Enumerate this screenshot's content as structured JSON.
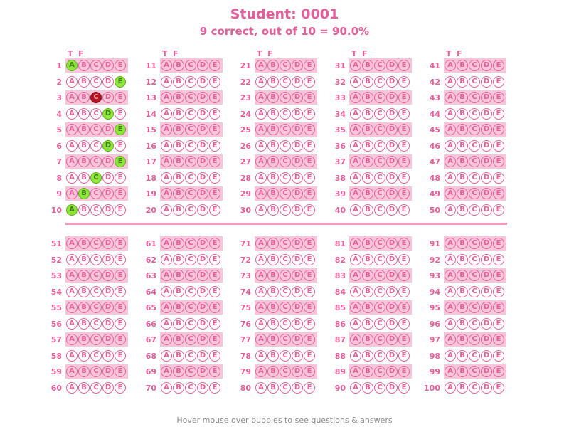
{
  "header": {
    "title": "Student: 0001",
    "score_line": "9 correct, out of 10 = 90.0%"
  },
  "column_header": "T  F",
  "choices": [
    "A",
    "B",
    "C",
    "D",
    "E"
  ],
  "questions": [
    {
      "number": "1",
      "marked": "A",
      "result": "correct"
    },
    {
      "number": "2",
      "marked": "E",
      "result": "correct"
    },
    {
      "number": "3",
      "marked": "C",
      "result": "wrong"
    },
    {
      "number": "4",
      "marked": "D",
      "result": "correct"
    },
    {
      "number": "5",
      "marked": "E",
      "result": "correct"
    },
    {
      "number": "6",
      "marked": "D",
      "result": "correct"
    },
    {
      "number": "7",
      "marked": "E",
      "result": "correct"
    },
    {
      "number": "8",
      "marked": "C",
      "result": "correct"
    },
    {
      "number": "9",
      "marked": "B",
      "result": "correct"
    },
    {
      "number": "10",
      "marked": "A",
      "result": "correct"
    },
    {
      "number": "11"
    },
    {
      "number": "12"
    },
    {
      "number": "13"
    },
    {
      "number": "14"
    },
    {
      "number": "15"
    },
    {
      "number": "16"
    },
    {
      "number": "17"
    },
    {
      "number": "18"
    },
    {
      "number": "19"
    },
    {
      "number": "20"
    },
    {
      "number": "21"
    },
    {
      "number": "22"
    },
    {
      "number": "23"
    },
    {
      "number": "24"
    },
    {
      "number": "25"
    },
    {
      "number": "26"
    },
    {
      "number": "27"
    },
    {
      "number": "28"
    },
    {
      "number": "29"
    },
    {
      "number": "30"
    },
    {
      "number": "31"
    },
    {
      "number": "32"
    },
    {
      "number": "33"
    },
    {
      "number": "34"
    },
    {
      "number": "35"
    },
    {
      "number": "36"
    },
    {
      "number": "37"
    },
    {
      "number": "38"
    },
    {
      "number": "39"
    },
    {
      "number": "40"
    },
    {
      "number": "41"
    },
    {
      "number": "42"
    },
    {
      "number": "43"
    },
    {
      "number": "44"
    },
    {
      "number": "45"
    },
    {
      "number": "46"
    },
    {
      "number": "47"
    },
    {
      "number": "48"
    },
    {
      "number": "49"
    },
    {
      "number": "50"
    },
    {
      "number": "51"
    },
    {
      "number": "52"
    },
    {
      "number": "53"
    },
    {
      "number": "54"
    },
    {
      "number": "55"
    },
    {
      "number": "56"
    },
    {
      "number": "57"
    },
    {
      "number": "58"
    },
    {
      "number": "59"
    },
    {
      "number": "60"
    },
    {
      "number": "61"
    },
    {
      "number": "62"
    },
    {
      "number": "63"
    },
    {
      "number": "64"
    },
    {
      "number": "65"
    },
    {
      "number": "66"
    },
    {
      "number": "67"
    },
    {
      "number": "68"
    },
    {
      "number": "69"
    },
    {
      "number": "70"
    },
    {
      "number": "71"
    },
    {
      "number": "72"
    },
    {
      "number": "73"
    },
    {
      "number": "74"
    },
    {
      "number": "75"
    },
    {
      "number": "76"
    },
    {
      "number": "77"
    },
    {
      "number": "78"
    },
    {
      "number": "79"
    },
    {
      "number": "80"
    },
    {
      "number": "81"
    },
    {
      "number": "82"
    },
    {
      "number": "83"
    },
    {
      "number": "84"
    },
    {
      "number": "85"
    },
    {
      "number": "86"
    },
    {
      "number": "87"
    },
    {
      "number": "88"
    },
    {
      "number": "89"
    },
    {
      "number": "90"
    },
    {
      "number": "91"
    },
    {
      "number": "92"
    },
    {
      "number": "93"
    },
    {
      "number": "94"
    },
    {
      "number": "95"
    },
    {
      "number": "96"
    },
    {
      "number": "97"
    },
    {
      "number": "98"
    },
    {
      "number": "99"
    },
    {
      "number": "100"
    }
  ],
  "footer": "Hover mouse over bubbles to see questions & answers",
  "colors": {
    "accent": "#e4609a",
    "stripe": "#f8c6da",
    "correct": "#8fe63a",
    "wrong": "#b11522",
    "footer_text": "#8a8a8a"
  }
}
